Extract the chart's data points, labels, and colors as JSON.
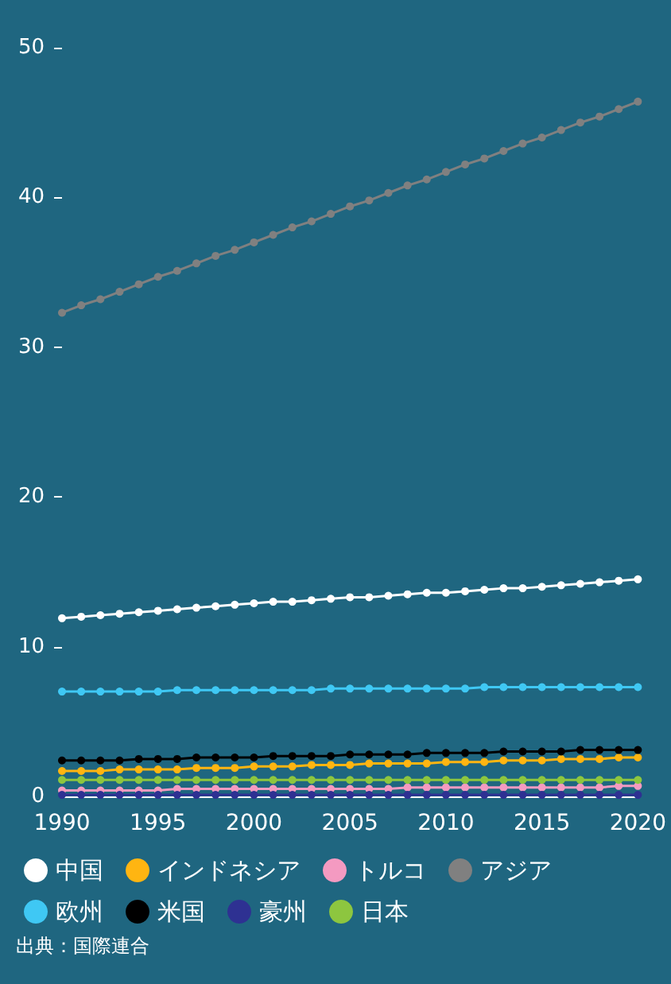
{
  "chart_data": {
    "type": "line",
    "x": [
      1990,
      1991,
      1992,
      1993,
      1994,
      1995,
      1996,
      1997,
      1998,
      1999,
      2000,
      2001,
      2002,
      2003,
      2004,
      2005,
      2006,
      2007,
      2008,
      2009,
      2010,
      2011,
      2012,
      2013,
      2014,
      2015,
      2016,
      2017,
      2018,
      2019,
      2020
    ],
    "xlim": [
      1990,
      2020
    ],
    "xticks": [
      1990,
      1995,
      2000,
      2005,
      2010,
      2015,
      2020
    ],
    "ylim": [
      0,
      50
    ],
    "yticks": [
      0,
      10,
      20,
      30,
      40,
      50
    ],
    "grid": false,
    "legend": "bottom",
    "marker": "circle",
    "line_style": "solid",
    "annotations": [
      "出典：国際連合"
    ],
    "series": [
      {
        "name": "中国",
        "color": "#ffffff",
        "values": [
          11.9,
          12.0,
          12.1,
          12.2,
          12.3,
          12.4,
          12.5,
          12.6,
          12.7,
          12.8,
          12.9,
          13.0,
          13.0,
          13.1,
          13.2,
          13.3,
          13.3,
          13.4,
          13.5,
          13.6,
          13.6,
          13.7,
          13.8,
          13.9,
          13.9,
          14.0,
          14.1,
          14.2,
          14.3,
          14.4,
          14.5
        ]
      },
      {
        "name": "インドネシア",
        "color": "#ffb511",
        "values": [
          1.7,
          1.7,
          1.7,
          1.8,
          1.8,
          1.8,
          1.8,
          1.9,
          1.9,
          1.9,
          2.0,
          2.0,
          2.0,
          2.1,
          2.1,
          2.1,
          2.2,
          2.2,
          2.2,
          2.2,
          2.3,
          2.3,
          2.3,
          2.4,
          2.4,
          2.4,
          2.5,
          2.5,
          2.5,
          2.6,
          2.6
        ]
      },
      {
        "name": "トルコ",
        "color": "#f49ac1",
        "values": [
          0.4,
          0.4,
          0.4,
          0.4,
          0.4,
          0.4,
          0.5,
          0.5,
          0.5,
          0.5,
          0.5,
          0.5,
          0.5,
          0.5,
          0.5,
          0.5,
          0.5,
          0.5,
          0.6,
          0.6,
          0.6,
          0.6,
          0.6,
          0.6,
          0.6,
          0.6,
          0.6,
          0.6,
          0.6,
          0.7,
          0.7
        ]
      },
      {
        "name": "アジア",
        "color": "#808080",
        "values": [
          32.3,
          32.8,
          33.2,
          33.7,
          34.2,
          34.7,
          35.1,
          35.6,
          36.1,
          36.5,
          37.0,
          37.5,
          38.0,
          38.4,
          38.9,
          39.4,
          39.8,
          40.3,
          40.8,
          41.2,
          41.7,
          42.2,
          42.6,
          43.1,
          43.6,
          44.0,
          44.5,
          45.0,
          45.4,
          45.9,
          46.4
        ]
      },
      {
        "name": "欧州",
        "color": "#3fc8f4",
        "values": [
          7.0,
          7.0,
          7.0,
          7.0,
          7.0,
          7.0,
          7.1,
          7.1,
          7.1,
          7.1,
          7.1,
          7.1,
          7.1,
          7.1,
          7.2,
          7.2,
          7.2,
          7.2,
          7.2,
          7.2,
          7.2,
          7.2,
          7.3,
          7.3,
          7.3,
          7.3,
          7.3,
          7.3,
          7.3,
          7.3,
          7.3
        ]
      },
      {
        "name": "米国",
        "color": "#000000",
        "values": [
          2.4,
          2.4,
          2.4,
          2.4,
          2.5,
          2.5,
          2.5,
          2.6,
          2.6,
          2.6,
          2.6,
          2.7,
          2.7,
          2.7,
          2.7,
          2.8,
          2.8,
          2.8,
          2.8,
          2.9,
          2.9,
          2.9,
          2.9,
          3.0,
          3.0,
          3.0,
          3.0,
          3.1,
          3.1,
          3.1,
          3.1
        ]
      },
      {
        "name": "豪州",
        "color": "#2e3192",
        "values": [
          0.1,
          0.1,
          0.1,
          0.1,
          0.1,
          0.1,
          0.1,
          0.1,
          0.1,
          0.1,
          0.1,
          0.1,
          0.1,
          0.1,
          0.1,
          0.1,
          0.1,
          0.1,
          0.1,
          0.1,
          0.1,
          0.1,
          0.1,
          0.1,
          0.1,
          0.1,
          0.1,
          0.1,
          0.1,
          0.1,
          0.1
        ]
      },
      {
        "name": "日本",
        "color": "#8dc63f",
        "values": [
          1.1,
          1.1,
          1.1,
          1.1,
          1.1,
          1.1,
          1.1,
          1.1,
          1.1,
          1.1,
          1.1,
          1.1,
          1.1,
          1.1,
          1.1,
          1.1,
          1.1,
          1.1,
          1.1,
          1.1,
          1.1,
          1.1,
          1.1,
          1.1,
          1.1,
          1.1,
          1.1,
          1.1,
          1.1,
          1.1,
          1.1
        ]
      }
    ]
  }
}
